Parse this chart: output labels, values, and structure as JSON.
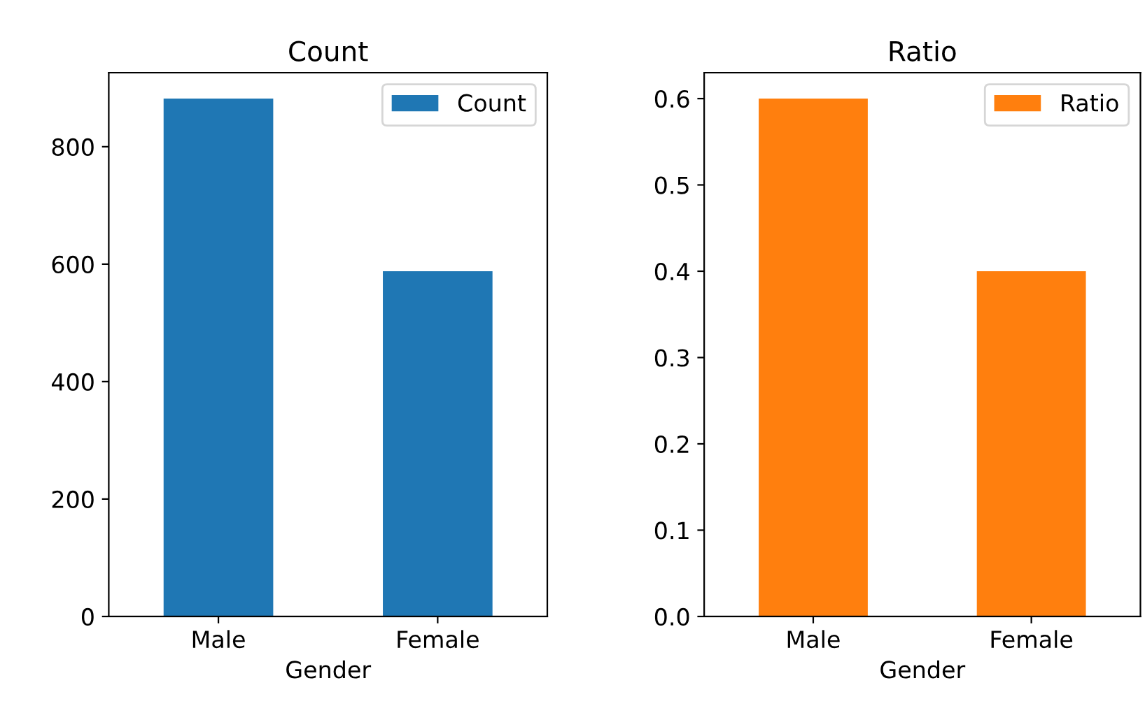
{
  "chart_data": [
    {
      "type": "bar",
      "title": "Count",
      "xlabel": "Gender",
      "categories": [
        "Male",
        "Female"
      ],
      "series": [
        {
          "name": "Count",
          "color": "#1f77b4",
          "values": [
            882,
            588
          ]
        }
      ],
      "ylim": [
        0,
        926
      ],
      "yticks": [
        0,
        200,
        400,
        600,
        800
      ],
      "grid": false,
      "legend": "top right"
    },
    {
      "type": "bar",
      "title": "Ratio",
      "xlabel": "Gender",
      "categories": [
        "Male",
        "Female"
      ],
      "series": [
        {
          "name": "Ratio",
          "color": "#ff7f0e",
          "values": [
            0.6,
            0.4
          ]
        }
      ],
      "ylim": [
        0,
        0.63
      ],
      "yticks": [
        {
          "value": 0,
          "label": "0.0"
        },
        0.1,
        0.2,
        0.3,
        0.4,
        0.5,
        0.6
      ],
      "grid": false,
      "legend": "top right"
    }
  ]
}
